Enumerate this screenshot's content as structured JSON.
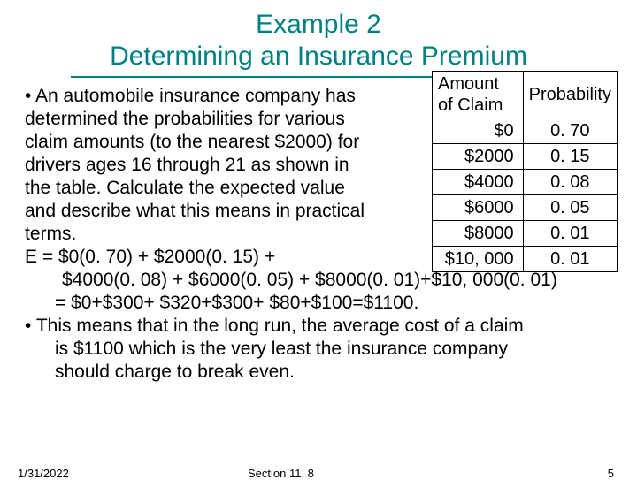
{
  "title": {
    "line1": "Example 2",
    "line2": "Determining an Insurance Premium",
    "color": "#008080",
    "fontsize": 30
  },
  "body": {
    "bullet1_prefix": "•  ",
    "p1": "An automobile insurance company has",
    "p2": "determined the probabilities for various",
    "p3": "claim amounts (to the nearest $2000) for",
    "p4": "drivers ages 16 through 21 as shown in",
    "p5": "the table.  Calculate the expected value",
    "p6": "and describe what this means in practical",
    "p7": "terms.",
    "eq1": "E = $0(0. 70) + $2000(0. 15) +",
    "eq2": "$4000(0. 08) + $6000(0. 05) + $8000(0. 01)+$10, 000(0. 01)",
    "eq3": "= $0+$300+ $320+$300+ $80+$100=$1100.",
    "bullet2_prefix": "•  ",
    "p8": "This means that in the long run, the average cost of a claim",
    "p9": "is $1100 which  is the very least the insurance company",
    "p10": "should charge to break even.",
    "fontsize": 21,
    "color": "#000000"
  },
  "table": {
    "header1": "Amount of Claim",
    "header2": "Probability",
    "rows": [
      {
        "amount": "$0",
        "prob": "0. 70"
      },
      {
        "amount": "$2000",
        "prob": "0. 15"
      },
      {
        "amount": "$4000",
        "prob": "0. 08"
      },
      {
        "amount": "$6000",
        "prob": "0. 05"
      },
      {
        "amount": "$8000",
        "prob": "0. 01"
      },
      {
        "amount": "$10, 000",
        "prob": "0. 01"
      }
    ],
    "border_color": "#000000",
    "fontsize": 20
  },
  "footer": {
    "date": "1/31/2022",
    "section": "Section 11. 8",
    "pagenum": "5",
    "fontsize": 13
  }
}
